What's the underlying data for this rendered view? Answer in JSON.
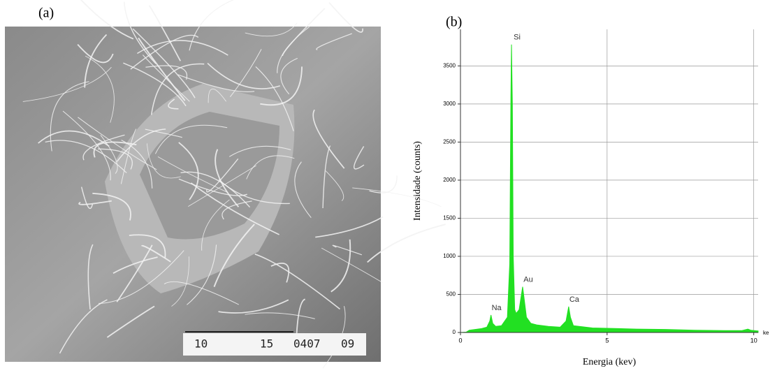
{
  "panels": {
    "a": {
      "label": "(a)",
      "scale_bar": [
        "10",
        "15",
        "0407",
        "09"
      ]
    },
    "b": {
      "label": "(b)"
    }
  },
  "chart_data": {
    "type": "area",
    "xlabel": "Energia (kev)",
    "ylabel": "Intensidade (counts)",
    "x_unit_label": "ke",
    "x": [
      0,
      0.2,
      0.3,
      0.5,
      0.7,
      0.9,
      1.0,
      1.04,
      1.1,
      1.2,
      1.4,
      1.6,
      1.68,
      1.72,
      1.74,
      1.77,
      1.8,
      1.85,
      1.9,
      2.0,
      2.08,
      2.12,
      2.16,
      2.25,
      2.4,
      2.6,
      3.0,
      3.4,
      3.6,
      3.69,
      3.75,
      3.85,
      4.5,
      5,
      6,
      7,
      8,
      9,
      9.6,
      9.8,
      9.9,
      10.15
    ],
    "values": [
      0,
      5,
      30,
      40,
      50,
      70,
      150,
      230,
      120,
      80,
      90,
      200,
      900,
      3100,
      3780,
      3000,
      1000,
      300,
      250,
      300,
      500,
      600,
      480,
      200,
      120,
      100,
      80,
      70,
      150,
      340,
      200,
      90,
      60,
      55,
      45,
      40,
      30,
      25,
      25,
      45,
      30,
      20
    ],
    "color": "#22e022",
    "xlim": [
      0,
      10.15
    ],
    "ylim": [
      0,
      3980
    ],
    "xticks": [
      0,
      5,
      10
    ],
    "yticks": [
      0,
      500,
      1000,
      1500,
      2000,
      2500,
      3000,
      3500
    ],
    "grid": true,
    "annotations": [
      {
        "text": "Na",
        "x": 1.04,
        "y": 230
      },
      {
        "text": "Si",
        "x": 1.74,
        "y": 3780
      },
      {
        "text": "Au",
        "x": 2.12,
        "y": 600
      },
      {
        "text": "Ca",
        "x": 3.69,
        "y": 340
      }
    ]
  }
}
